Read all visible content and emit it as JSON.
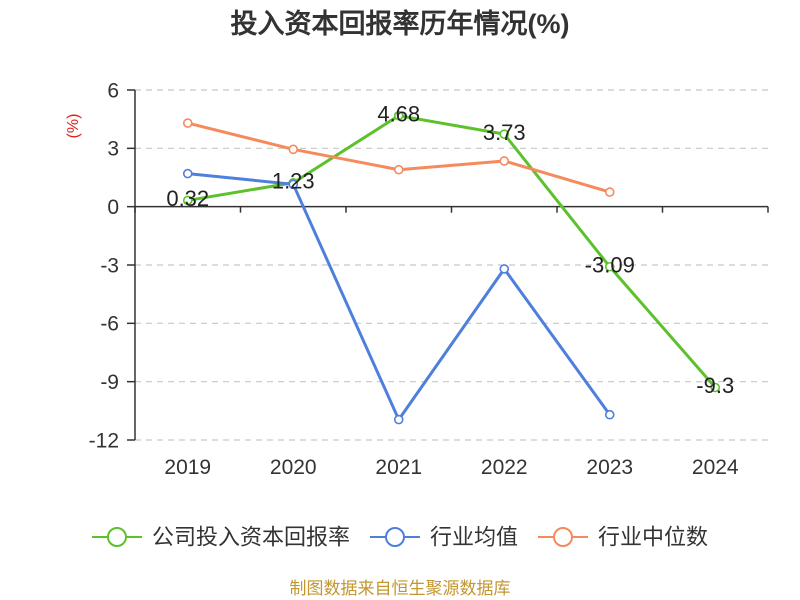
{
  "source_note": "制图数据来自恒生聚源数据库",
  "chart_data": {
    "type": "line",
    "title": "投入资本回报率历年情况(%)",
    "ylabel": "(%)",
    "categories": [
      "2019",
      "2020",
      "2021",
      "2022",
      "2023",
      "2024"
    ],
    "ylim": [
      -12,
      6
    ],
    "yticks": [
      6,
      3,
      0,
      -3,
      -6,
      -9,
      -12
    ],
    "grid": true,
    "legend_position": "bottom",
    "series": [
      {
        "name": "公司投入资本回报率",
        "color": "#5cc12a",
        "show_data_labels": true,
        "values": [
          0.32,
          1.23,
          4.68,
          3.73,
          -3.09,
          -9.3
        ]
      },
      {
        "name": "行业均值",
        "color": "#4e7fdd",
        "show_data_labels": false,
        "values": [
          1.7,
          1.15,
          -10.95,
          -3.2,
          -10.7,
          null
        ]
      },
      {
        "name": "行业中位数",
        "color": "#f58a5c",
        "show_data_labels": false,
        "values": [
          4.3,
          2.95,
          1.9,
          2.35,
          0.75,
          null
        ]
      }
    ]
  }
}
